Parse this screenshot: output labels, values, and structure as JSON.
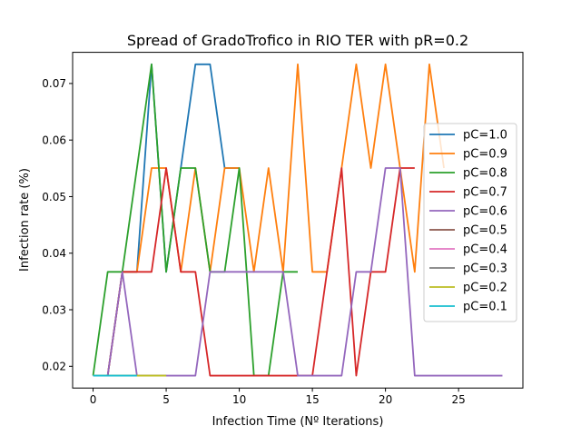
{
  "chart_data": {
    "type": "line",
    "title": "Spread of GradoTrofico in RIO TER with pR=0.2",
    "xlabel": "Infection Time (Nº Iterations)",
    "ylabel": "Infection rate (%)",
    "xlim": [
      -1.4,
      29.4
    ],
    "ylim": [
      0.01616,
      0.07551
    ],
    "xticks": [
      0,
      5,
      10,
      15,
      20,
      25
    ],
    "yticks": [
      0.02,
      0.03,
      0.04,
      0.05,
      0.06,
      0.07
    ],
    "ytick_labels": [
      "0.02",
      "0.03",
      "0.04",
      "0.05",
      "0.06",
      "0.07"
    ],
    "grid": false,
    "legend_position": "center-right",
    "series": [
      {
        "name": "pC=1.0",
        "color": "#1f77b4",
        "x": [
          0,
          1,
          2,
          3,
          4,
          5,
          6,
          7,
          8,
          9,
          10
        ],
        "y": [
          0.01835,
          0.01835,
          0.0367,
          0.0367,
          0.07339,
          0.0367,
          0.05505,
          0.07339,
          0.07339,
          0.05505,
          0.05505
        ]
      },
      {
        "name": "pC=0.9",
        "color": "#ff7f0e",
        "x": [
          0,
          1,
          2,
          3,
          4,
          5,
          6,
          7,
          8,
          9,
          10,
          11,
          12,
          13,
          14,
          15,
          16,
          17,
          18,
          19,
          20,
          21,
          22,
          23,
          24
        ],
        "y": [
          0.01835,
          0.01835,
          0.0367,
          0.0367,
          0.05505,
          0.05505,
          0.0367,
          0.05505,
          0.0367,
          0.05505,
          0.05505,
          0.0367,
          0.05505,
          0.0367,
          0.07339,
          0.0367,
          0.0367,
          0.05505,
          0.07339,
          0.05505,
          0.07339,
          0.05505,
          0.0367,
          0.07339,
          0.05505
        ]
      },
      {
        "name": "pC=0.8",
        "color": "#2ca02c",
        "x": [
          0,
          1,
          2,
          3,
          4,
          5,
          6,
          7,
          8,
          9,
          10,
          11,
          12,
          13,
          14
        ],
        "y": [
          0.01835,
          0.0367,
          0.0367,
          0.05505,
          0.07339,
          0.0367,
          0.05505,
          0.05505,
          0.0367,
          0.0367,
          0.05505,
          0.01835,
          0.01835,
          0.0367,
          0.0367
        ]
      },
      {
        "name": "pC=0.7",
        "color": "#d62728",
        "x": [
          0,
          1,
          2,
          3,
          4,
          5,
          6,
          7,
          8,
          9,
          10,
          11,
          12,
          13,
          14,
          15,
          16,
          17,
          18,
          19,
          20,
          21,
          22
        ],
        "y": [
          0.01835,
          0.01835,
          0.0367,
          0.0367,
          0.0367,
          0.05505,
          0.0367,
          0.0367,
          0.01835,
          0.01835,
          0.01835,
          0.01835,
          0.01835,
          0.01835,
          0.01835,
          0.01835,
          0.0367,
          0.05505,
          0.01835,
          0.0367,
          0.0367,
          0.05505,
          0.05505
        ]
      },
      {
        "name": "pC=0.6",
        "color": "#9467bd",
        "x": [
          0,
          1,
          2,
          3,
          4,
          5,
          6,
          7,
          8,
          9,
          10,
          11,
          12,
          13,
          14,
          15,
          16,
          17,
          18,
          19,
          20,
          21,
          22,
          23,
          24,
          25,
          26,
          27,
          28
        ],
        "y": [
          0.01835,
          0.01835,
          0.0367,
          0.01835,
          0.01835,
          0.01835,
          0.01835,
          0.01835,
          0.0367,
          0.0367,
          0.0367,
          0.0367,
          0.0367,
          0.0367,
          0.01835,
          0.01835,
          0.01835,
          0.01835,
          0.0367,
          0.0367,
          0.05505,
          0.05505,
          0.01835,
          0.01835,
          0.01835,
          0.01835,
          0.01835,
          0.01835,
          0.01835
        ]
      },
      {
        "name": "pC=0.5",
        "color": "#8c564b",
        "x": [
          0,
          1,
          2,
          3,
          4,
          5
        ],
        "y": [
          0.01835,
          0.01835,
          0.01835,
          0.01835,
          0.01835,
          0.01835
        ]
      },
      {
        "name": "pC=0.4",
        "color": "#e377c2",
        "x": [
          0,
          1,
          2,
          3,
          4,
          5
        ],
        "y": [
          0.01835,
          0.01835,
          0.01835,
          0.01835,
          0.01835,
          0.01835
        ]
      },
      {
        "name": "pC=0.3",
        "color": "#7f7f7f",
        "x": [
          0,
          1,
          2,
          3,
          4,
          5
        ],
        "y": [
          0.01835,
          0.01835,
          0.01835,
          0.01835,
          0.01835,
          0.01835
        ]
      },
      {
        "name": "pC=0.2",
        "color": "#bcbd22",
        "x": [
          0,
          1,
          2,
          3,
          4,
          5
        ],
        "y": [
          0.01835,
          0.01835,
          0.01835,
          0.01835,
          0.01835,
          0.01835
        ]
      },
      {
        "name": "pC=0.1",
        "color": "#17becf",
        "x": [
          0,
          1,
          2,
          3
        ],
        "y": [
          0.01835,
          0.01835,
          0.01835,
          0.01835
        ]
      }
    ]
  }
}
